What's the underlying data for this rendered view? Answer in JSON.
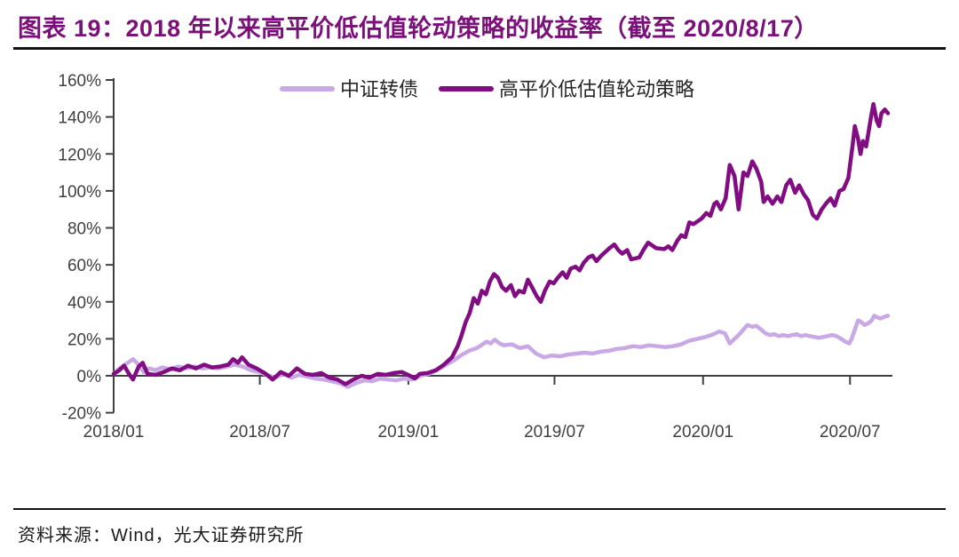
{
  "header": {
    "title": "图表 19：2018 年以来高平价低估值轮动策略的收益率（截至 2020/8/17）"
  },
  "footer": {
    "source": "资料来源：Wind，光大证券研究所"
  },
  "colors": {
    "title": "#7B107B",
    "axis": "#404040",
    "divider": "#111111",
    "series_csi_bond": "#C8A9E6",
    "series_strategy": "#820D82"
  },
  "chart_data": {
    "type": "line",
    "title": "2018 年以来高平价低估值轮动策略的收益率",
    "grid": false,
    "legend_position": "top-center",
    "y_axis": {
      "unit": "%",
      "min": -20,
      "max": 160,
      "step": 20,
      "tick_labels": [
        "-20%",
        "0%",
        "20%",
        "40%",
        "60%",
        "80%",
        "100%",
        "120%",
        "140%",
        "160%"
      ]
    },
    "x_axis": {
      "range": [
        "2018-01-01",
        "2020-08-17"
      ],
      "ticks": [
        {
          "label": "2018/01",
          "date": "2018-01-01"
        },
        {
          "label": "2018/07",
          "date": "2018-07-01"
        },
        {
          "label": "2019/01",
          "date": "2019-01-01"
        },
        {
          "label": "2019/07",
          "date": "2019-07-01"
        },
        {
          "label": "2020/01",
          "date": "2020-01-01"
        },
        {
          "label": "2020/07",
          "date": "2020-07-01"
        }
      ]
    },
    "series": [
      {
        "name": "中证转债",
        "color": "#C8A9E6",
        "points": [
          [
            "2018-01-01",
            1
          ],
          [
            "2018-01-08",
            4
          ],
          [
            "2018-01-15",
            6
          ],
          [
            "2018-01-25",
            9
          ],
          [
            "2018-02-01",
            6
          ],
          [
            "2018-02-07",
            2
          ],
          [
            "2018-02-14",
            4
          ],
          [
            "2018-02-22",
            3
          ],
          [
            "2018-03-02",
            4.5
          ],
          [
            "2018-03-12",
            3.5
          ],
          [
            "2018-03-22",
            5
          ],
          [
            "2018-04-01",
            4
          ],
          [
            "2018-04-11",
            5
          ],
          [
            "2018-04-21",
            4
          ],
          [
            "2018-05-01",
            4.5
          ],
          [
            "2018-05-11",
            4
          ],
          [
            "2018-05-21",
            5
          ],
          [
            "2018-05-31",
            6
          ],
          [
            "2018-06-10",
            5
          ],
          [
            "2018-06-20",
            3
          ],
          [
            "2018-06-30",
            2
          ],
          [
            "2018-07-10",
            0.5
          ],
          [
            "2018-07-20",
            -1
          ],
          [
            "2018-07-30",
            1
          ],
          [
            "2018-08-09",
            -1
          ],
          [
            "2018-08-19",
            0.5
          ],
          [
            "2018-08-29",
            -0.5
          ],
          [
            "2018-09-08",
            -1.5
          ],
          [
            "2018-09-18",
            -2
          ],
          [
            "2018-09-28",
            -3
          ],
          [
            "2018-10-08",
            -4
          ],
          [
            "2018-10-18",
            -6
          ],
          [
            "2018-10-28",
            -4
          ],
          [
            "2018-11-07",
            -2.5
          ],
          [
            "2018-11-17",
            -3
          ],
          [
            "2018-11-27",
            -1.5
          ],
          [
            "2018-12-07",
            -2
          ],
          [
            "2018-12-17",
            -2.5
          ],
          [
            "2018-12-27",
            -1.5
          ],
          [
            "2019-01-06",
            -2
          ],
          [
            "2019-01-16",
            0
          ],
          [
            "2019-01-26",
            1
          ],
          [
            "2019-02-05",
            3
          ],
          [
            "2019-02-15",
            5.5
          ],
          [
            "2019-02-25",
            8
          ],
          [
            "2019-03-07",
            11
          ],
          [
            "2019-03-17",
            13.5
          ],
          [
            "2019-03-27",
            15
          ],
          [
            "2019-04-03",
            17
          ],
          [
            "2019-04-08",
            18.5
          ],
          [
            "2019-04-13",
            17.5
          ],
          [
            "2019-04-18",
            19.5
          ],
          [
            "2019-04-24",
            17.5
          ],
          [
            "2019-04-29",
            16.5
          ],
          [
            "2019-05-09",
            17
          ],
          [
            "2019-05-19",
            15
          ],
          [
            "2019-05-29",
            16
          ],
          [
            "2019-06-08",
            12
          ],
          [
            "2019-06-18",
            10
          ],
          [
            "2019-06-28",
            11
          ],
          [
            "2019-07-08",
            10.5
          ],
          [
            "2019-07-18",
            11.5
          ],
          [
            "2019-07-28",
            12
          ],
          [
            "2019-08-07",
            12.5
          ],
          [
            "2019-08-17",
            12
          ],
          [
            "2019-08-27",
            13
          ],
          [
            "2019-09-06",
            13.5
          ],
          [
            "2019-09-16",
            14.5
          ],
          [
            "2019-09-26",
            15
          ],
          [
            "2019-10-06",
            16
          ],
          [
            "2019-10-16",
            15.5
          ],
          [
            "2019-10-26",
            16.5
          ],
          [
            "2019-11-05",
            16
          ],
          [
            "2019-11-15",
            15.5
          ],
          [
            "2019-11-25",
            16
          ],
          [
            "2019-12-05",
            17
          ],
          [
            "2019-12-15",
            19
          ],
          [
            "2019-12-25",
            20
          ],
          [
            "2020-01-04",
            21
          ],
          [
            "2020-01-14",
            22.5
          ],
          [
            "2020-01-21",
            24
          ],
          [
            "2020-01-28",
            23
          ],
          [
            "2020-02-03",
            17.5
          ],
          [
            "2020-02-08",
            19.5
          ],
          [
            "2020-02-14",
            22
          ],
          [
            "2020-02-20",
            25
          ],
          [
            "2020-02-25",
            27.5
          ],
          [
            "2020-03-02",
            26.5
          ],
          [
            "2020-03-07",
            27
          ],
          [
            "2020-03-13",
            25
          ],
          [
            "2020-03-18",
            23
          ],
          [
            "2020-03-24",
            22
          ],
          [
            "2020-03-29",
            22.5
          ],
          [
            "2020-04-04",
            21.5
          ],
          [
            "2020-04-09",
            22
          ],
          [
            "2020-04-15",
            21.5
          ],
          [
            "2020-04-20",
            22
          ],
          [
            "2020-04-26",
            22.5
          ],
          [
            "2020-05-01",
            21.5
          ],
          [
            "2020-05-07",
            22
          ],
          [
            "2020-05-12",
            21.5
          ],
          [
            "2020-05-18",
            21
          ],
          [
            "2020-05-23",
            20.5
          ],
          [
            "2020-05-29",
            21
          ],
          [
            "2020-06-03",
            21.5
          ],
          [
            "2020-06-09",
            22
          ],
          [
            "2020-06-14",
            21.5
          ],
          [
            "2020-06-20",
            20
          ],
          [
            "2020-06-25",
            18.5
          ],
          [
            "2020-06-30",
            17.5
          ],
          [
            "2020-07-03",
            20
          ],
          [
            "2020-07-07",
            25
          ],
          [
            "2020-07-11",
            30
          ],
          [
            "2020-07-15",
            29
          ],
          [
            "2020-07-19",
            27.5
          ],
          [
            "2020-07-24",
            28.5
          ],
          [
            "2020-07-28",
            30
          ],
          [
            "2020-07-31",
            32.5
          ],
          [
            "2020-08-04",
            31.5
          ],
          [
            "2020-08-08",
            31
          ],
          [
            "2020-08-13",
            32
          ],
          [
            "2020-08-17",
            32.5
          ]
        ]
      },
      {
        "name": "高平价低估值轮动策略",
        "color": "#820D82",
        "points": [
          [
            "2018-01-01",
            1
          ],
          [
            "2018-01-08",
            3
          ],
          [
            "2018-01-14",
            5.5
          ],
          [
            "2018-01-20",
            1
          ],
          [
            "2018-01-25",
            -2
          ],
          [
            "2018-02-01",
            5
          ],
          [
            "2018-02-06",
            7
          ],
          [
            "2018-02-12",
            1
          ],
          [
            "2018-02-22",
            0.5
          ],
          [
            "2018-03-04",
            2
          ],
          [
            "2018-03-14",
            4
          ],
          [
            "2018-03-24",
            3
          ],
          [
            "2018-04-03",
            5.5
          ],
          [
            "2018-04-13",
            4
          ],
          [
            "2018-04-23",
            6
          ],
          [
            "2018-05-03",
            4.5
          ],
          [
            "2018-05-13",
            5
          ],
          [
            "2018-05-23",
            6
          ],
          [
            "2018-05-29",
            9
          ],
          [
            "2018-06-04",
            7
          ],
          [
            "2018-06-09",
            10
          ],
          [
            "2018-06-17",
            6
          ],
          [
            "2018-06-27",
            4
          ],
          [
            "2018-07-07",
            1.5
          ],
          [
            "2018-07-17",
            -2
          ],
          [
            "2018-07-27",
            2
          ],
          [
            "2018-08-06",
            0
          ],
          [
            "2018-08-16",
            4
          ],
          [
            "2018-08-26",
            1
          ],
          [
            "2018-09-05",
            0.5
          ],
          [
            "2018-09-15",
            1.5
          ],
          [
            "2018-09-25",
            -1
          ],
          [
            "2018-10-05",
            -2
          ],
          [
            "2018-10-15",
            -4.5
          ],
          [
            "2018-10-25",
            -2
          ],
          [
            "2018-11-04",
            0
          ],
          [
            "2018-11-14",
            -1
          ],
          [
            "2018-11-24",
            1
          ],
          [
            "2018-12-04",
            0.5
          ],
          [
            "2018-12-14",
            1.5
          ],
          [
            "2018-12-24",
            2
          ],
          [
            "2019-01-03",
            0
          ],
          [
            "2019-01-09",
            -1.5
          ],
          [
            "2019-01-15",
            1
          ],
          [
            "2019-01-25",
            1.5
          ],
          [
            "2019-02-04",
            3
          ],
          [
            "2019-02-14",
            6
          ],
          [
            "2019-02-24",
            10
          ],
          [
            "2019-03-03",
            16
          ],
          [
            "2019-03-08",
            22
          ],
          [
            "2019-03-13",
            29
          ],
          [
            "2019-03-18",
            34
          ],
          [
            "2019-03-23",
            42
          ],
          [
            "2019-03-28",
            39
          ],
          [
            "2019-04-02",
            46
          ],
          [
            "2019-04-07",
            44
          ],
          [
            "2019-04-12",
            51
          ],
          [
            "2019-04-17",
            55
          ],
          [
            "2019-04-22",
            53
          ],
          [
            "2019-04-27",
            48
          ],
          [
            "2019-05-02",
            46
          ],
          [
            "2019-05-08",
            49
          ],
          [
            "2019-05-13",
            43
          ],
          [
            "2019-05-18",
            46
          ],
          [
            "2019-05-24",
            45
          ],
          [
            "2019-05-29",
            52
          ],
          [
            "2019-06-03",
            48
          ],
          [
            "2019-06-09",
            43
          ],
          [
            "2019-06-14",
            40
          ],
          [
            "2019-06-19",
            46
          ],
          [
            "2019-06-25",
            51
          ],
          [
            "2019-06-30",
            50
          ],
          [
            "2019-07-05",
            53
          ],
          [
            "2019-07-11",
            56
          ],
          [
            "2019-07-16",
            53
          ],
          [
            "2019-07-21",
            58
          ],
          [
            "2019-07-27",
            59
          ],
          [
            "2019-08-01",
            57
          ],
          [
            "2019-08-06",
            61
          ],
          [
            "2019-08-12",
            64
          ],
          [
            "2019-08-17",
            65
          ],
          [
            "2019-08-22",
            62
          ],
          [
            "2019-08-28",
            65
          ],
          [
            "2019-09-02",
            67
          ],
          [
            "2019-09-07",
            69
          ],
          [
            "2019-09-13",
            71
          ],
          [
            "2019-09-18",
            68
          ],
          [
            "2019-09-23",
            66
          ],
          [
            "2019-09-29",
            68
          ],
          [
            "2019-10-04",
            63
          ],
          [
            "2019-10-14",
            64
          ],
          [
            "2019-10-19",
            68
          ],
          [
            "2019-10-25",
            72
          ],
          [
            "2019-11-04",
            69
          ],
          [
            "2019-11-14",
            68.5
          ],
          [
            "2019-11-19",
            70
          ],
          [
            "2019-11-24",
            68
          ],
          [
            "2019-11-30",
            73
          ],
          [
            "2019-12-05",
            76
          ],
          [
            "2019-12-10",
            75
          ],
          [
            "2019-12-15",
            83
          ],
          [
            "2019-12-20",
            82
          ],
          [
            "2019-12-30",
            85
          ],
          [
            "2020-01-05",
            88
          ],
          [
            "2020-01-10",
            86.5
          ],
          [
            "2020-01-15",
            93
          ],
          [
            "2020-01-18",
            94
          ],
          [
            "2020-01-23",
            90
          ],
          [
            "2020-01-29",
            96
          ],
          [
            "2020-02-03",
            114
          ],
          [
            "2020-02-09",
            108
          ],
          [
            "2020-02-14",
            90
          ],
          [
            "2020-02-20",
            110
          ],
          [
            "2020-02-25",
            108
          ],
          [
            "2020-03-02",
            116
          ],
          [
            "2020-03-07",
            112
          ],
          [
            "2020-03-13",
            105
          ],
          [
            "2020-03-16",
            94
          ],
          [
            "2020-03-21",
            97
          ],
          [
            "2020-03-27",
            93
          ],
          [
            "2020-04-02",
            97
          ],
          [
            "2020-04-07",
            94
          ],
          [
            "2020-04-13",
            103
          ],
          [
            "2020-04-18",
            106
          ],
          [
            "2020-04-24",
            99
          ],
          [
            "2020-04-29",
            103
          ],
          [
            "2020-05-05",
            98
          ],
          [
            "2020-05-10",
            95
          ],
          [
            "2020-05-16",
            87
          ],
          [
            "2020-05-21",
            85
          ],
          [
            "2020-05-27",
            90
          ],
          [
            "2020-06-01",
            93
          ],
          [
            "2020-06-07",
            96
          ],
          [
            "2020-06-12",
            92
          ],
          [
            "2020-06-18",
            100
          ],
          [
            "2020-06-23",
            101
          ],
          [
            "2020-06-29",
            107
          ],
          [
            "2020-07-04",
            124
          ],
          [
            "2020-07-07",
            135
          ],
          [
            "2020-07-11",
            128
          ],
          [
            "2020-07-14",
            120
          ],
          [
            "2020-07-17",
            127
          ],
          [
            "2020-07-21",
            124
          ],
          [
            "2020-07-24",
            132
          ],
          [
            "2020-07-27",
            140
          ],
          [
            "2020-07-30",
            147
          ],
          [
            "2020-08-03",
            138
          ],
          [
            "2020-08-06",
            135
          ],
          [
            "2020-08-09",
            142
          ],
          [
            "2020-08-13",
            144
          ],
          [
            "2020-08-17",
            142
          ]
        ]
      }
    ]
  }
}
